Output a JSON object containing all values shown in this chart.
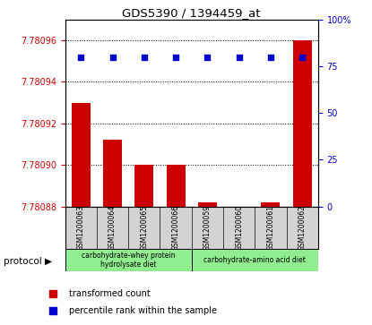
{
  "title": "GDS5390 / 1394459_at",
  "samples": [
    "GSM1200063",
    "GSM1200064",
    "GSM1200065",
    "GSM1200066",
    "GSM1200059",
    "GSM1200060",
    "GSM1200061",
    "GSM1200062"
  ],
  "bar_values": [
    7.78093,
    7.780912,
    7.7809,
    7.7809,
    7.780882,
    7.780878,
    7.780882,
    7.78096
  ],
  "percentile_values": [
    80,
    80,
    80,
    80,
    80,
    80,
    80,
    80
  ],
  "ylim_left": [
    7.78088,
    7.78097
  ],
  "ylim_right": [
    0,
    100
  ],
  "yticks_left": [
    7.78088,
    7.7809,
    7.78092,
    7.78094,
    7.78096
  ],
  "yticks_right": [
    0,
    25,
    50,
    75,
    100
  ],
  "bar_color": "#cc0000",
  "dot_color": "#0000cc",
  "group1_label": "carbohydrate-whey protein\nhydrolysate diet",
  "group2_label": "carbohydrate-amino acid diet",
  "group1_color": "#90ee90",
  "group2_color": "#90ee90",
  "legend_bar_label": "transformed count",
  "legend_dot_label": "percentile rank within the sample",
  "protocol_label": "protocol",
  "tick_label_color_left": "#cc0000",
  "tick_label_color_right": "#0000cc"
}
